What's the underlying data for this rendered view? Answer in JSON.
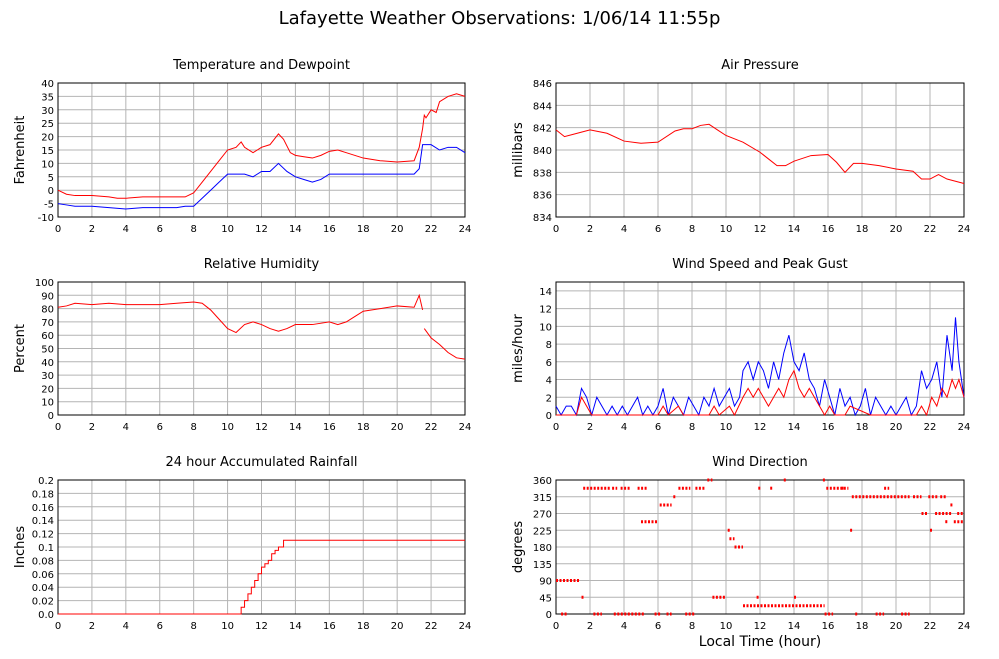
{
  "title": "Lafayette Weather Observations: 1/06/14 11:55p",
  "x_axis_label": "Local Time (hour)",
  "colors": {
    "red": "#ff0000",
    "blue": "#0000ff",
    "grid": "#b4b4b4"
  },
  "chart_data": [
    {
      "id": "temperature",
      "type": "line",
      "title": "Temperature and Dewpoint",
      "xlabel": "",
      "ylabel": "Fahrenheit",
      "xlim": [
        0,
        24
      ],
      "ylim": [
        -10,
        40
      ],
      "xticks": [
        0,
        2,
        4,
        6,
        8,
        10,
        12,
        14,
        16,
        18,
        20,
        22,
        24
      ],
      "yticks": [
        -10,
        -5,
        0,
        5,
        10,
        15,
        20,
        25,
        30,
        35,
        40
      ],
      "grid": true,
      "series": [
        {
          "color": "#ff0000",
          "x": [
            0,
            0.5,
            1,
            2,
            3,
            3.5,
            4,
            5,
            6,
            7,
            7.5,
            8,
            8.5,
            9,
            9.5,
            10,
            10.5,
            10.8,
            11,
            11.5,
            12,
            12.5,
            13,
            13.3,
            13.7,
            14,
            14.5,
            15,
            15.5,
            16,
            16.5,
            17,
            18,
            19,
            20,
            21,
            21.3,
            21.5,
            21.6,
            21.7,
            22,
            22.3,
            22.5,
            23,
            23.5,
            24
          ],
          "values": [
            0,
            -1.5,
            -2,
            -2,
            -2.5,
            -3,
            -3,
            -2.5,
            -2.5,
            -2.5,
            -2.5,
            -1,
            3,
            7,
            11,
            15,
            16,
            18,
            16,
            14,
            16,
            17,
            21,
            19,
            14,
            13,
            12.5,
            12,
            13,
            14.5,
            15,
            14,
            12,
            11,
            10.5,
            11,
            16,
            23,
            28,
            27,
            30,
            29,
            33,
            35,
            36,
            35
          ]
        },
        {
          "color": "#0000ff",
          "x": [
            0,
            0.5,
            1,
            2,
            3,
            4,
            5,
            6,
            7,
            7.5,
            8,
            8.5,
            9,
            9.5,
            10,
            10.5,
            11,
            11.5,
            12,
            12.5,
            13,
            13.5,
            14,
            14.5,
            15,
            15.5,
            16,
            17,
            18,
            19,
            20,
            21,
            21.3,
            21.5,
            22,
            22.5,
            23,
            23.5,
            24
          ],
          "values": [
            -5,
            -5.5,
            -6,
            -6,
            -6.5,
            -7,
            -6.5,
            -6.5,
            -6.5,
            -6,
            -6,
            -3,
            0,
            3,
            6,
            6,
            6,
            5,
            7,
            7,
            10,
            7,
            5,
            4,
            3,
            4,
            6,
            6,
            6,
            6,
            6,
            6,
            8,
            17,
            17,
            15,
            16,
            16,
            14
          ]
        }
      ]
    },
    {
      "id": "pressure",
      "type": "line",
      "title": "Air Pressure",
      "xlabel": "",
      "ylabel": "millibars",
      "xlim": [
        0,
        24
      ],
      "ylim": [
        834,
        846
      ],
      "xticks": [
        0,
        2,
        4,
        6,
        8,
        10,
        12,
        14,
        16,
        18,
        20,
        22,
        24
      ],
      "yticks": [
        834,
        836,
        838,
        840,
        842,
        844,
        846
      ],
      "grid": true,
      "series": [
        {
          "color": "#ff0000",
          "x": [
            0,
            0.5,
            1,
            1.5,
            2,
            3,
            4,
            5,
            6,
            7,
            7.5,
            8,
            8.5,
            9,
            9.5,
            10,
            11,
            12,
            12.5,
            13,
            13.5,
            14,
            15,
            16,
            16.5,
            17,
            17.5,
            18,
            19,
            20,
            21,
            21.5,
            22,
            22.5,
            23,
            23.5,
            24
          ],
          "values": [
            841.8,
            841.2,
            841.4,
            841.6,
            841.8,
            841.5,
            840.8,
            840.6,
            840.7,
            841.7,
            841.9,
            841.9,
            842.2,
            842.3,
            841.8,
            841.3,
            840.7,
            839.8,
            839.2,
            838.6,
            838.6,
            839,
            839.5,
            839.6,
            838.9,
            838,
            838.8,
            838.8,
            838.6,
            838.3,
            838.1,
            837.4,
            837.4,
            837.8,
            837.4,
            837.2,
            837.0
          ]
        }
      ]
    },
    {
      "id": "humidity",
      "type": "line",
      "title": "Relative Humidity",
      "xlabel": "",
      "ylabel": "Percent",
      "xlim": [
        0,
        24
      ],
      "ylim": [
        0,
        100
      ],
      "xticks": [
        0,
        2,
        4,
        6,
        8,
        10,
        12,
        14,
        16,
        18,
        20,
        22,
        24
      ],
      "yticks": [
        0,
        10,
        20,
        30,
        40,
        50,
        60,
        70,
        80,
        90,
        100
      ],
      "grid": true,
      "series": [
        {
          "color": "#ff0000",
          "x": [
            0,
            0.5,
            1,
            2,
            3,
            4,
            5,
            6,
            7,
            8,
            8.5,
            9,
            9.5,
            10,
            10.5,
            11,
            11.5,
            12,
            12.5,
            13,
            13.5,
            14,
            15,
            16,
            16.5,
            17,
            17.5,
            18,
            19,
            20,
            21,
            21.3,
            21.5
          ],
          "values": [
            81,
            82,
            84,
            83,
            84,
            83,
            83,
            83,
            84,
            85,
            84,
            79,
            72,
            65,
            62,
            68,
            70,
            68,
            65,
            63,
            65,
            68,
            68,
            70,
            68,
            70,
            74,
            78,
            80,
            82,
            81,
            90,
            79
          ]
        },
        {
          "color": "#ff0000",
          "x": [
            21.6,
            22,
            22.5,
            23,
            23.5,
            24
          ],
          "values": [
            65,
            58,
            53,
            47,
            43,
            42
          ]
        }
      ]
    },
    {
      "id": "wind-speed",
      "type": "line",
      "title": "Wind Speed and Peak Gust",
      "xlabel": "",
      "ylabel": "miles/hour",
      "xlim": [
        0,
        24
      ],
      "ylim": [
        0,
        15
      ],
      "xticks": [
        0,
        2,
        4,
        6,
        8,
        10,
        12,
        14,
        16,
        18,
        20,
        22,
        24
      ],
      "yticks": [
        0,
        2,
        4,
        6,
        8,
        10,
        12,
        14
      ],
      "grid": true,
      "series": [
        {
          "color": "#0000ff",
          "x": [
            0,
            0.3,
            0.6,
            0.9,
            1.2,
            1.5,
            1.8,
            2.1,
            2.4,
            2.7,
            3,
            3.3,
            3.6,
            3.9,
            4.2,
            4.5,
            4.8,
            5.1,
            5.4,
            5.7,
            6,
            6.3,
            6.6,
            6.9,
            7.2,
            7.5,
            7.8,
            8.1,
            8.4,
            8.7,
            9,
            9.3,
            9.6,
            9.9,
            10.2,
            10.5,
            10.8,
            11,
            11.3,
            11.6,
            11.9,
            12.2,
            12.5,
            12.8,
            13.1,
            13.4,
            13.7,
            14,
            14.3,
            14.6,
            14.9,
            15.2,
            15.5,
            15.8,
            16.1,
            16.4,
            16.7,
            17,
            17.3,
            17.6,
            17.9,
            18.2,
            18.5,
            18.8,
            19.1,
            19.4,
            19.7,
            20,
            20.3,
            20.6,
            20.9,
            21.2,
            21.5,
            21.8,
            22.1,
            22.4,
            22.7,
            23,
            23.3,
            23.5,
            23.7,
            24
          ],
          "values": [
            1,
            0,
            1,
            1,
            0,
            3,
            2,
            0,
            2,
            1,
            0,
            1,
            0,
            1,
            0,
            1,
            2,
            0,
            1,
            0,
            1,
            3,
            0,
            2,
            1,
            0,
            2,
            1,
            0,
            2,
            1,
            3,
            1,
            2,
            3,
            1,
            2,
            5,
            6,
            4,
            6,
            5,
            3,
            6,
            4,
            7,
            9,
            6,
            5,
            7,
            4,
            3,
            1,
            4,
            2,
            0,
            3,
            1,
            2,
            0,
            1,
            3,
            0,
            2,
            1,
            0,
            1,
            0,
            1,
            2,
            0,
            1,
            5,
            3,
            4,
            6,
            2,
            9,
            5,
            11,
            6,
            2
          ]
        },
        {
          "color": "#ff0000",
          "x": [
            0,
            1.2,
            1.5,
            1.8,
            2.1,
            3,
            6,
            6.3,
            6.6,
            7.2,
            7.5,
            9,
            9.3,
            9.6,
            10.2,
            10.5,
            11,
            11.3,
            11.6,
            11.9,
            12.2,
            12.5,
            12.8,
            13.1,
            13.4,
            13.7,
            14,
            14.3,
            14.6,
            14.9,
            15.2,
            15.5,
            15.8,
            16.1,
            16.4,
            17,
            17.3,
            18.5,
            21.2,
            21.5,
            21.8,
            22.1,
            22.4,
            22.7,
            23,
            23.3,
            23.5,
            23.7,
            24
          ],
          "values": [
            0,
            0,
            2,
            1,
            0,
            0,
            0,
            1,
            0,
            1,
            0,
            0,
            1,
            0,
            1,
            0,
            2,
            3,
            2,
            3,
            2,
            1,
            2,
            3,
            2,
            4,
            5,
            3,
            2,
            3,
            2,
            1,
            0,
            1,
            0,
            0,
            1,
            0,
            0,
            1,
            0,
            2,
            1,
            3,
            2,
            4,
            3,
            4,
            2
          ]
        }
      ]
    },
    {
      "id": "rainfall",
      "type": "line",
      "title": "24 hour Accumulated Rainfall",
      "xlabel": "",
      "ylabel": "Inches",
      "xlim": [
        0,
        24
      ],
      "ylim": [
        0,
        0.2
      ],
      "xticks": [
        0,
        2,
        4,
        6,
        8,
        10,
        12,
        14,
        16,
        18,
        20,
        22,
        24
      ],
      "yticks": [
        0.0,
        0.02,
        0.04,
        0.06,
        0.08,
        0.1,
        0.12,
        0.14,
        0.16,
        0.18,
        0.2
      ],
      "ytick_labels": [
        "0.0",
        "0.02",
        "0.04",
        "0.06",
        "0.08",
        "0.1",
        "0.12",
        "0.14",
        "0.16",
        "0.18",
        "0.2"
      ],
      "grid": true,
      "series": [
        {
          "color": "#ff0000",
          "x": [
            0,
            10.6,
            10.8,
            11.0,
            11.2,
            11.4,
            11.6,
            11.8,
            12.0,
            12.2,
            12.4,
            12.6,
            12.8,
            13.0,
            13.3,
            24
          ],
          "values": [
            0,
            0,
            0.01,
            0.02,
            0.03,
            0.04,
            0.05,
            0.06,
            0.07,
            0.075,
            0.08,
            0.09,
            0.095,
            0.1,
            0.11,
            0.11
          ],
          "step": true
        }
      ]
    },
    {
      "id": "wind-direction",
      "type": "scatter",
      "title": "Wind Direction",
      "xlabel": "Local Time (hour)",
      "ylabel": "degrees",
      "xlim": [
        0,
        24
      ],
      "ylim": [
        0,
        360
      ],
      "xticks": [
        0,
        2,
        4,
        6,
        8,
        10,
        12,
        14,
        16,
        18,
        20,
        22,
        24
      ],
      "yticks": [
        0,
        45,
        90,
        135,
        180,
        225,
        270,
        315,
        360
      ],
      "grid": true,
      "series": [
        {
          "color": "#ff0000",
          "segments": [
            [
              0,
              1.4,
              90
            ],
            [
              0.3,
              0.7,
              0
            ],
            [
              1.5,
              1.6,
              45
            ],
            [
              1.6,
              3.2,
              338
            ],
            [
              2.2,
              2.7,
              0
            ],
            [
              3.3,
              3.6,
              338
            ],
            [
              3.4,
              5.2,
              0
            ],
            [
              3.8,
              4.4,
              338
            ],
            [
              4.8,
              5.4,
              338
            ],
            [
              5.0,
              6.0,
              248
            ],
            [
              5.8,
              6.2,
              0
            ],
            [
              6.1,
              6.8,
              293
            ],
            [
              6.5,
              6.8,
              0
            ],
            [
              6.9,
              7.1,
              315
            ],
            [
              7.2,
              7.9,
              338
            ],
            [
              7.6,
              8.2,
              0
            ],
            [
              8.2,
              8.8,
              338
            ],
            [
              8.9,
              9.2,
              360
            ],
            [
              9.2,
              10.0,
              45
            ],
            [
              10.1,
              10.2,
              225
            ],
            [
              10.2,
              10.5,
              202
            ],
            [
              10.5,
              11.0,
              180
            ],
            [
              11.0,
              15.8,
              22
            ],
            [
              11.8,
              11.9,
              45
            ],
            [
              11.9,
              12.0,
              338
            ],
            [
              12.6,
              12.8,
              338
            ],
            [
              13.4,
              13.5,
              360
            ],
            [
              14.0,
              14.1,
              45
            ],
            [
              15.7,
              15.8,
              360
            ],
            [
              15.8,
              16.3,
              0
            ],
            [
              15.9,
              17.2,
              338
            ],
            [
              16.8,
              17.0,
              338
            ],
            [
              17.3,
              17.4,
              225
            ],
            [
              17.4,
              20.8,
              315
            ],
            [
              17.6,
              17.8,
              0
            ],
            [
              18.8,
              19.3,
              0
            ],
            [
              19.3,
              19.6,
              338
            ],
            [
              20.3,
              20.8,
              0
            ],
            [
              21.0,
              21.5,
              315
            ],
            [
              21.5,
              21.9,
              270
            ],
            [
              22.0,
              22.0,
              225
            ],
            [
              21.9,
              22.5,
              315
            ],
            [
              22.3,
              23.3,
              270
            ],
            [
              22.6,
              23.0,
              315
            ],
            [
              22.9,
              23.1,
              248
            ],
            [
              23.2,
              23.4,
              293
            ],
            [
              23.4,
              24.0,
              248
            ],
            [
              23.6,
              24.0,
              270
            ]
          ]
        }
      ]
    }
  ]
}
